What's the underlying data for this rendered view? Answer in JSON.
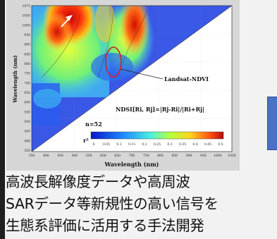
{
  "figure": {
    "y_axis_label": "Wavelength (nm)",
    "x_axis_label": "Wavelength (nm)",
    "x_ticks": [
      "350",
      "400",
      "450",
      "500",
      "550",
      "600",
      "650",
      "700",
      "750",
      "800",
      "850",
      "900",
      "950",
      "1000",
      "1050"
    ],
    "y_ticks": [
      "1075",
      "1050",
      "1000",
      "950",
      "900",
      "850",
      "800",
      "750",
      "700",
      "650",
      "600",
      "550",
      "500",
      "450",
      "400",
      "350"
    ],
    "annotation_label": "Landsat-NDVI",
    "formula": "NDSI[Ri, Rj]=|Rj-Ri|/|Ri+Rj|",
    "sample_count": "n=52",
    "colorbar_symbol": "r²",
    "colorbar_ticks": [
      "0",
      "0.05",
      "0.1",
      "0.15",
      "0.2",
      "0.25",
      "0.3",
      "0.35",
      "0.4",
      "0.45",
      "0.5"
    ],
    "colors": {
      "low": "#1e3cff",
      "mid": "#7cff5a",
      "high": "#e01010",
      "highlight_ellipse": "#d42020"
    }
  },
  "caption": {
    "line1": "高波長解像度データや高周波",
    "line2": "SARデータ等新規性の高い信号を",
    "line3": "生態系評価に活用する手法開発"
  }
}
